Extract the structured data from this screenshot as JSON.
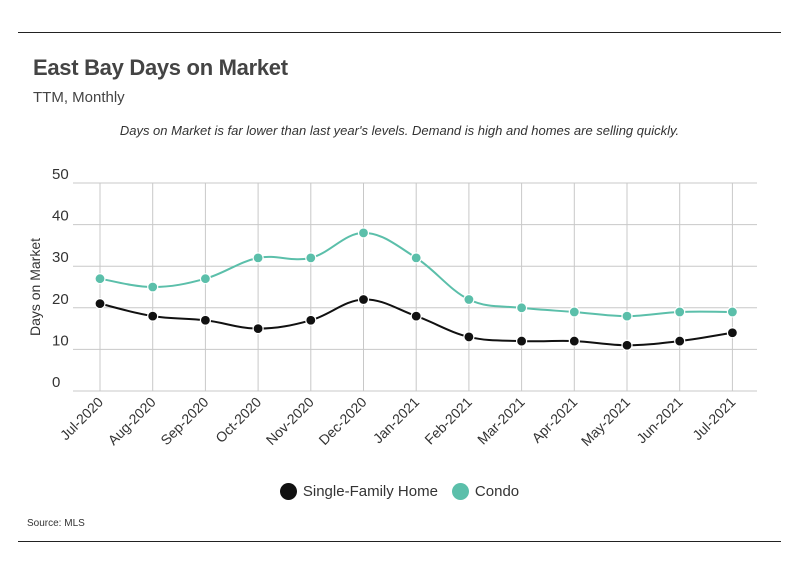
{
  "header": {
    "title": "East Bay Days on Market",
    "subtitle": "TTM, Monthly",
    "note": "Days on Market is far lower than last year's levels. Demand is high and homes are selling quickly."
  },
  "source": "Source:  MLS",
  "colors": {
    "sfh": "#111111",
    "condo": "#5bbfaa",
    "grid": "#c8c8c8"
  },
  "chart_data": {
    "type": "line",
    "ylabel": "Days on Market",
    "xlabel": "",
    "ylim": [
      0,
      50
    ],
    "yticks": [
      "0",
      "10",
      "20",
      "30",
      "40",
      "50"
    ],
    "grid": true,
    "legend_position": "bottom",
    "categories": [
      "Jul-2020",
      "Aug-2020",
      "Sep-2020",
      "Oct-2020",
      "Nov-2020",
      "Dec-2020",
      "Jan-2021",
      "Feb-2021",
      "Mar-2021",
      "Apr-2021",
      "May-2021",
      "Jun-2021",
      "Jul-2021"
    ],
    "series": [
      {
        "name": "Single-Family Home",
        "values": [
          21,
          18,
          17,
          15,
          17,
          22,
          18,
          13,
          12,
          12,
          11,
          12,
          14
        ]
      },
      {
        "name": "Condo",
        "values": [
          27,
          25,
          27,
          32,
          32,
          38,
          32,
          22,
          20,
          19,
          18,
          19,
          19
        ]
      }
    ]
  }
}
